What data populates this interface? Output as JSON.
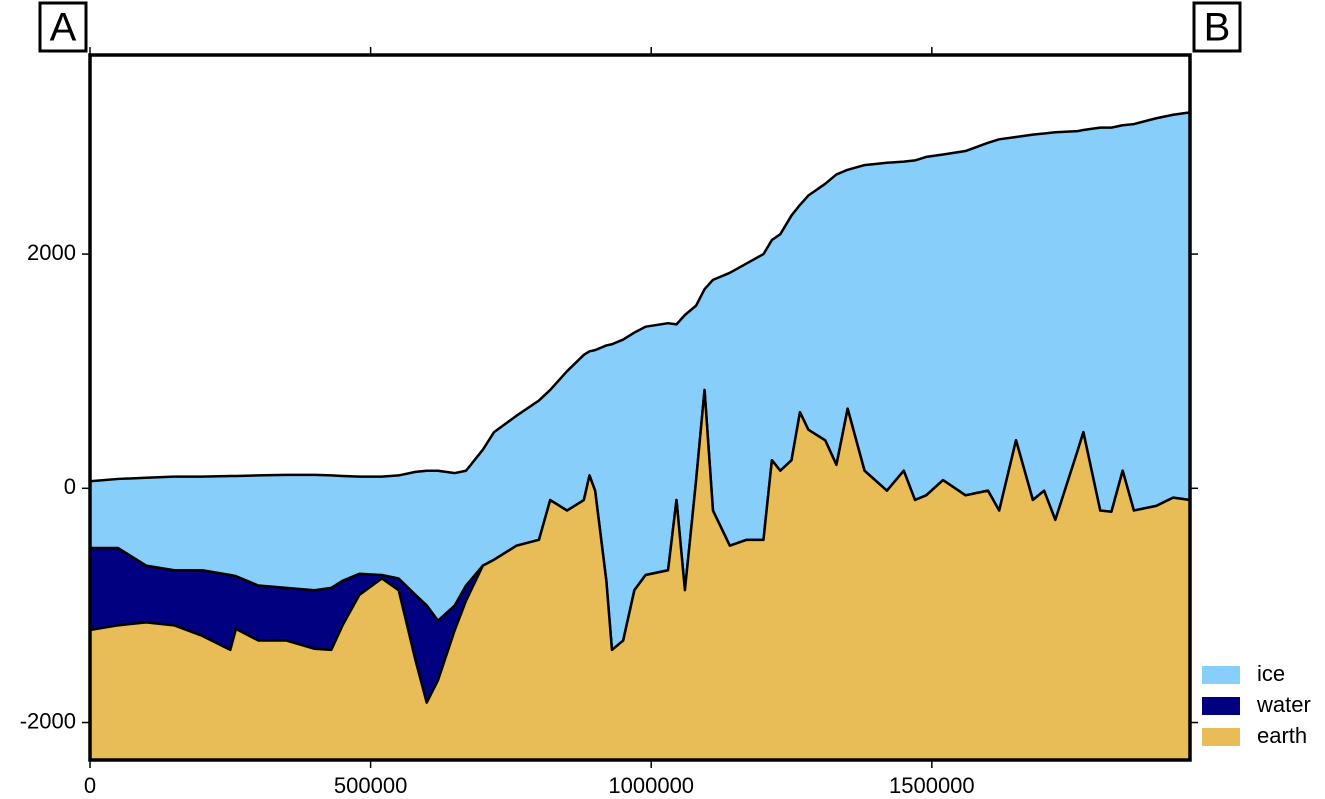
{
  "chart_data": {
    "type": "area",
    "annotations": [
      "A",
      "B"
    ],
    "x": [
      0,
      50000,
      100000,
      150000,
      200000,
      250000,
      260000,
      300000,
      350000,
      400000,
      430000,
      450000,
      480000,
      520000,
      550000,
      580000,
      600000,
      620000,
      650000,
      670000,
      700000,
      720000,
      760000,
      800000,
      820000,
      850000,
      880000,
      890000,
      900000,
      920000,
      930000,
      950000,
      970000,
      990000,
      1030000,
      1045000,
      1060000,
      1080000,
      1095000,
      1110000,
      1140000,
      1170000,
      1200000,
      1215000,
      1230000,
      1250000,
      1265000,
      1280000,
      1310000,
      1330000,
      1350000,
      1380000,
      1420000,
      1450000,
      1470000,
      1490000,
      1520000,
      1560000,
      1600000,
      1620000,
      1650000,
      1680000,
      1700000,
      1720000,
      1760000,
      1770000,
      1800000,
      1820000,
      1840000,
      1860000,
      1900000,
      1930000,
      1960000
    ],
    "series": [
      {
        "name": "ice",
        "color": "#87cefa",
        "values": [
          60,
          80,
          90,
          100,
          100,
          105,
          105,
          110,
          115,
          115,
          110,
          105,
          100,
          100,
          110,
          140,
          150,
          150,
          130,
          150,
          330,
          480,
          620,
          750,
          840,
          1000,
          1140,
          1170,
          1180,
          1220,
          1230,
          1270,
          1330,
          1380,
          1410,
          1400,
          1480,
          1560,
          1700,
          1780,
          1840,
          1920,
          2000,
          2120,
          2170,
          2330,
          2420,
          2500,
          2600,
          2680,
          2720,
          2760,
          2780,
          2790,
          2800,
          2830,
          2850,
          2880,
          2950,
          2980,
          3000,
          3020,
          3030,
          3040,
          3050,
          3060,
          3080,
          3080,
          3100,
          3110,
          3160,
          3190,
          3210
        ]
      },
      {
        "name": "water",
        "color": "#000080",
        "values": [
          -510,
          -510,
          -660,
          -700,
          -700,
          -740,
          -750,
          -830,
          -850,
          -870,
          -850,
          -790,
          -730,
          -740,
          -770,
          -910,
          -1000,
          -1130,
          -1000,
          -830,
          -660,
          -610,
          -490,
          -440,
          -100,
          -190,
          -100,
          110,
          -20,
          -790,
          -1380,
          -1300,
          -870,
          -740,
          -700,
          -100,
          -870,
          70,
          840,
          -190,
          -490,
          -440,
          -440,
          240,
          150,
          240,
          650,
          500,
          410,
          200,
          680,
          150,
          -20,
          150,
          -100,
          -60,
          70,
          -60,
          -20,
          -190,
          410,
          -100,
          -20,
          -270,
          325,
          480,
          -190,
          -200,
          150,
          -190,
          -150,
          -80,
          -100
        ]
      },
      {
        "name": "earth",
        "color": "#e8bc56",
        "values": [
          -1210,
          -1170,
          -1145,
          -1170,
          -1260,
          -1380,
          -1200,
          -1300,
          -1300,
          -1370,
          -1380,
          -1170,
          -910,
          -770,
          -870,
          -1470,
          -1830,
          -1640,
          -1210,
          -960,
          -660,
          -610,
          -490,
          -440,
          -100,
          -190,
          -100,
          110,
          -20,
          -790,
          -1380,
          -1300,
          -870,
          -740,
          -700,
          -100,
          -870,
          70,
          840,
          -190,
          -490,
          -440,
          -440,
          240,
          150,
          240,
          650,
          500,
          410,
          200,
          680,
          150,
          -20,
          150,
          -100,
          -60,
          70,
          -60,
          -20,
          -190,
          410,
          -100,
          -20,
          -270,
          325,
          480,
          -190,
          -200,
          150,
          -190,
          -150,
          -80,
          -100
        ]
      }
    ],
    "xlim": [
      0,
      1960000
    ],
    "xticks": [
      0,
      500000,
      1000000,
      1500000
    ],
    "ylim": [
      -2320,
      3700
    ],
    "yticks": [
      -2000,
      0,
      2000
    ],
    "legend": "right"
  }
}
